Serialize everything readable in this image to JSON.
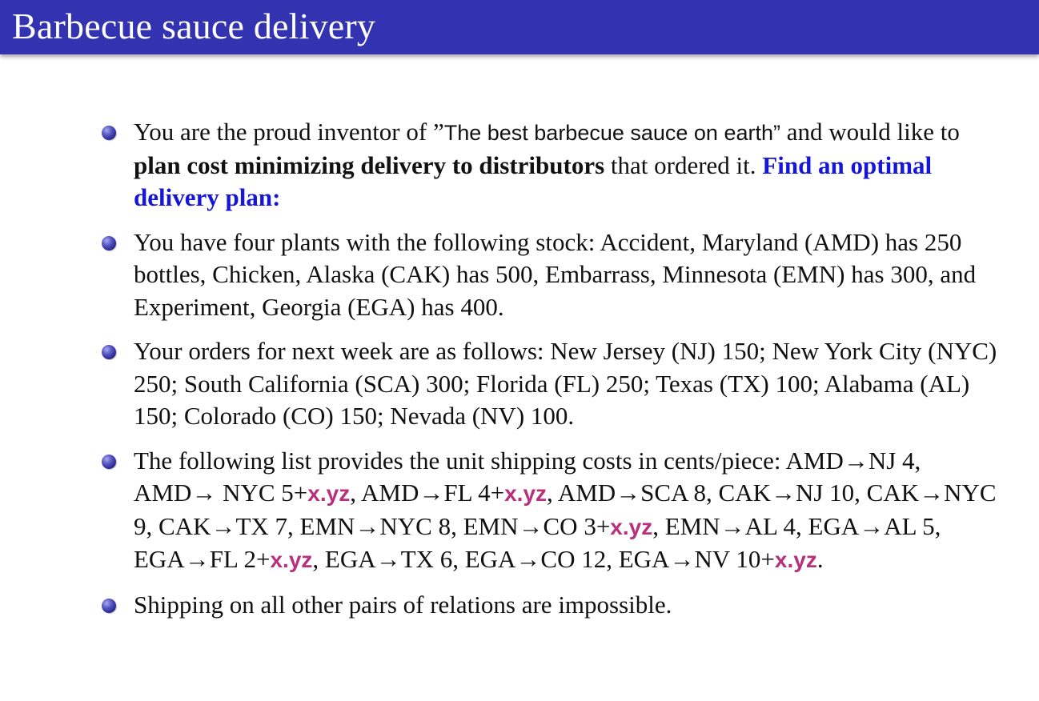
{
  "title": "Barbecue sauce delivery",
  "accent_color": "#3333b2",
  "highlight_blue": "#1616d8",
  "highlight_magenta": "#b8307a",
  "b1": {
    "t1": "You are the proud inventor of ”",
    "product": "The best barbecue sauce on earth”",
    "t2": " and would like to ",
    "bold": "plan cost minimizing delivery to distributors",
    "t3": " that ordered it. ",
    "emph": "Find an optimal delivery plan:"
  },
  "b2": {
    "text": "You have four plants with the following stock: Accident, Maryland (AMD) has 250 bottles, Chicken, Alaska (CAK) has 500, Embarrass, Minnesota (EMN) has 300, and Experiment, Georgia (EGA) has 400."
  },
  "b3": {
    "text": "Your orders for next week are as follows: New Jersey (NJ) 150; New York City (NYC) 250; South California (SCA) 300; Florida (FL) 250; Texas (TX) 100; Alabama (AL) 150; Colorado (CO) 150; Nevada (NV) 100."
  },
  "b4": {
    "s1": "The following list provides the unit shipping costs in cents/piece: AMD→NJ 4, AMD→ NYC 5+",
    "v1": "x.yz",
    "s2": ", AMD→FL 4+",
    "v2": "x.yz",
    "s3": ", AMD→SCA 8, CAK→NJ 10, CAK→NYC 9, CAK→TX 7, EMN→NYC 8, EMN→CO 3+",
    "v3": "x.yz",
    "s4": ", EMN→AL 4, EGA→AL 5, EGA→FL 2+",
    "v4": "x.yz",
    "s5": ", EGA→TX 6, EGA→CO 12, EGA→NV 10+",
    "v5": "x.yz",
    "s6": "."
  },
  "b5": {
    "text": "Shipping on all other pairs of relations are impossible."
  }
}
